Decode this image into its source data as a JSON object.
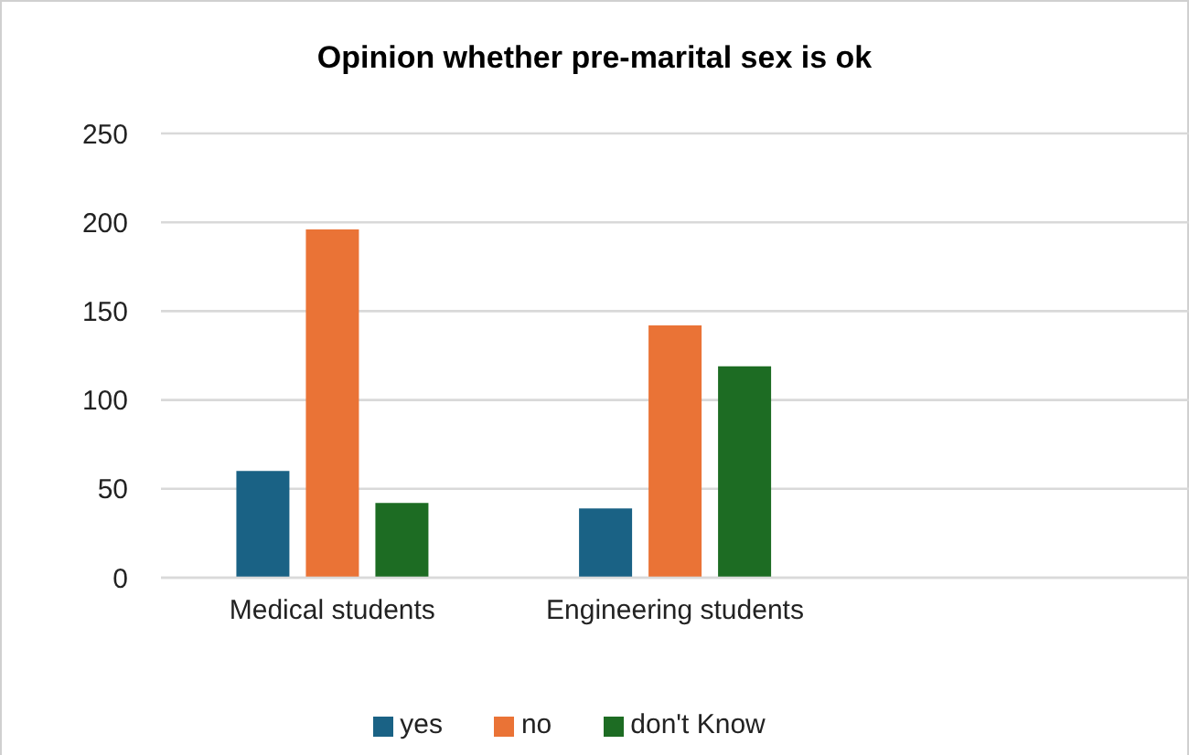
{
  "chart_data": {
    "type": "bar",
    "title": "Opinion whether pre-marital sex is ok",
    "categories": [
      "Medical students",
      "Engineering students",
      null
    ],
    "series": [
      {
        "name": "yes",
        "color": "#1a6285",
        "values": [
          60,
          39,
          null
        ]
      },
      {
        "name": "no",
        "color": "#ea7336",
        "values": [
          196,
          142,
          null
        ]
      },
      {
        "name": "don't Know",
        "color": "#1d6c23",
        "values": [
          42,
          119,
          null
        ]
      }
    ],
    "ylim": [
      0,
      250
    ],
    "yticks": [
      0,
      50,
      100,
      150,
      200,
      250
    ],
    "grid": "y",
    "legend": "bottom"
  }
}
